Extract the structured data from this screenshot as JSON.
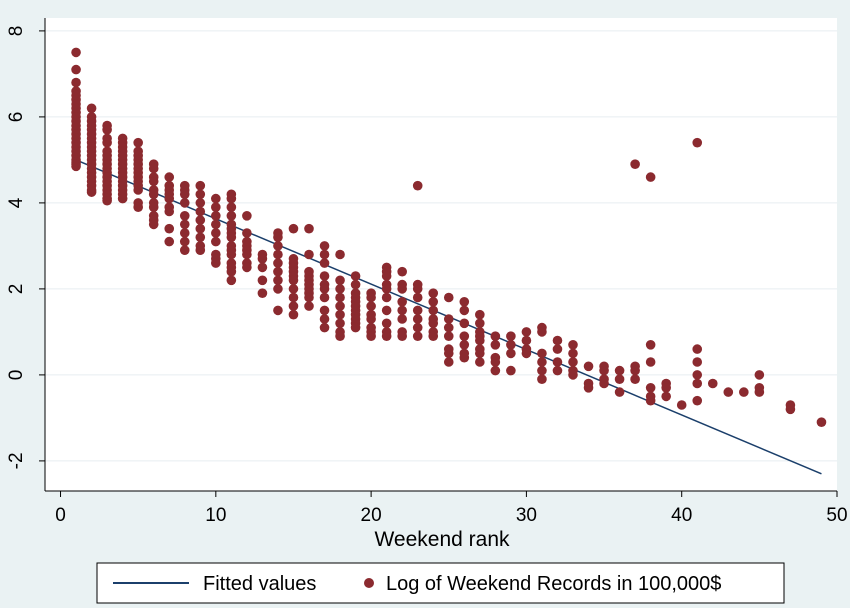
{
  "chart_data": {
    "type": "scatter",
    "title": "",
    "xlabel": "Weekend rank",
    "ylabel": "",
    "xlim": [
      -1,
      50
    ],
    "ylim": [
      -2.7,
      8.3
    ],
    "x_ticks": [
      0,
      10,
      20,
      30,
      40,
      50
    ],
    "y_ticks": [
      -2,
      0,
      2,
      4,
      6,
      8
    ],
    "grid": "horizontal",
    "legend": {
      "position": "bottom"
    },
    "colors": {
      "background": "#eaf2f3",
      "plot_area": "#ffffff",
      "grid": "#e8eef0",
      "points": "#8b2a2f",
      "fit_line": "#1b3f6b"
    },
    "series": [
      {
        "name": "Fitted values",
        "kind": "line",
        "x": [
          1,
          49
        ],
        "y": [
          5.0,
          -2.3
        ]
      },
      {
        "name": "Log of Weekend Records in 100,000$",
        "kind": "scatter",
        "x": [
          1,
          1,
          1,
          1,
          1,
          1,
          1,
          1,
          1,
          1,
          1,
          1,
          1,
          1,
          1,
          1,
          1,
          1,
          1,
          1,
          1,
          1,
          1,
          2,
          2,
          2,
          2,
          2,
          2,
          2,
          2,
          2,
          2,
          2,
          2,
          2,
          2,
          2,
          2,
          2,
          2,
          2,
          2,
          3,
          3,
          3,
          3,
          3,
          3,
          3,
          3,
          3,
          3,
          3,
          3,
          3,
          3,
          3,
          3,
          3,
          4,
          4,
          4,
          4,
          4,
          4,
          4,
          4,
          4,
          4,
          4,
          4,
          4,
          4,
          4,
          5,
          5,
          5,
          5,
          5,
          5,
          5,
          5,
          5,
          5,
          5,
          5,
          5,
          6,
          6,
          6,
          6,
          6,
          6,
          6,
          6,
          6,
          6,
          6,
          7,
          7,
          7,
          7,
          7,
          7,
          7,
          7,
          7,
          8,
          8,
          8,
          8,
          8,
          8,
          8,
          8,
          8,
          9,
          9,
          9,
          9,
          9,
          9,
          9,
          9,
          9,
          10,
          10,
          10,
          10,
          10,
          10,
          10,
          10,
          10,
          11,
          11,
          11,
          11,
          11,
          11,
          11,
          11,
          11,
          11,
          11,
          11,
          11,
          11,
          11,
          12,
          12,
          12,
          12,
          12,
          12,
          12,
          12,
          13,
          13,
          13,
          13,
          13,
          14,
          14,
          14,
          14,
          14,
          14,
          14,
          14,
          14,
          15,
          15,
          15,
          15,
          15,
          15,
          15,
          15,
          15,
          15,
          15,
          16,
          16,
          16,
          16,
          16,
          16,
          16,
          16,
          16,
          16,
          17,
          17,
          17,
          17,
          17,
          17,
          17,
          17,
          17,
          17,
          18,
          18,
          18,
          18,
          18,
          18,
          18,
          18,
          18,
          19,
          19,
          19,
          19,
          19,
          19,
          19,
          19,
          19,
          19,
          19,
          20,
          20,
          20,
          20,
          20,
          20,
          20,
          20,
          21,
          21,
          21,
          21,
          21,
          21,
          21,
          21,
          21,
          21,
          22,
          22,
          22,
          22,
          22,
          22,
          22,
          22,
          23,
          23,
          23,
          23,
          23,
          23,
          23,
          23,
          24,
          24,
          24,
          24,
          24,
          24,
          24,
          25,
          25,
          25,
          25,
          25,
          25,
          25,
          26,
          26,
          26,
          26,
          26,
          26,
          26,
          27,
          27,
          27,
          27,
          27,
          27,
          27,
          27,
          28,
          28,
          28,
          28,
          28,
          29,
          29,
          29,
          29,
          30,
          30,
          30,
          30,
          31,
          31,
          31,
          31,
          31,
          31,
          32,
          32,
          32,
          32,
          33,
          33,
          33,
          33,
          33,
          34,
          34,
          34,
          35,
          35,
          35,
          35,
          36,
          36,
          36,
          37,
          37,
          37,
          37,
          38,
          38,
          38,
          38,
          38,
          38,
          39,
          39,
          39,
          40,
          41,
          41,
          41,
          41,
          41,
          41,
          42,
          43,
          44,
          45,
          45,
          45,
          47,
          47,
          49
        ],
        "y": [
          7.5,
          7.1,
          6.8,
          6.6,
          6.5,
          6.4,
          6.3,
          6.2,
          6.1,
          6.0,
          5.9,
          5.8,
          5.7,
          5.6,
          5.5,
          5.4,
          5.3,
          5.2,
          5.1,
          5.0,
          4.95,
          4.9,
          4.85,
          6.2,
          6.0,
          5.9,
          5.8,
          5.7,
          5.6,
          5.5,
          5.4,
          5.3,
          5.2,
          5.1,
          5.0,
          4.9,
          4.8,
          4.7,
          4.6,
          4.5,
          4.4,
          4.3,
          4.25,
          5.8,
          5.7,
          5.5,
          5.4,
          5.2,
          5.1,
          5.0,
          4.9,
          4.8,
          4.7,
          4.6,
          4.5,
          4.4,
          4.3,
          4.2,
          4.1,
          4.05,
          5.5,
          5.4,
          5.3,
          5.2,
          5.1,
          5.0,
          4.9,
          4.8,
          4.7,
          4.6,
          4.5,
          4.4,
          4.3,
          4.2,
          4.1,
          5.4,
          5.2,
          5.1,
          5.0,
          4.9,
          4.8,
          4.7,
          4.6,
          4.5,
          4.4,
          4.3,
          4.0,
          3.9,
          4.9,
          4.8,
          4.6,
          4.5,
          4.3,
          4.2,
          4.0,
          3.9,
          3.7,
          3.6,
          3.5,
          4.6,
          4.4,
          4.3,
          4.2,
          4.1,
          3.9,
          3.8,
          3.4,
          3.1,
          4.4,
          4.3,
          4.2,
          4.0,
          3.7,
          3.5,
          3.3,
          3.1,
          2.9,
          4.4,
          4.2,
          4.0,
          3.8,
          3.6,
          3.4,
          3.2,
          3.0,
          2.9,
          4.1,
          3.9,
          3.7,
          3.5,
          3.3,
          3.1,
          2.8,
          2.7,
          2.6,
          4.2,
          4.1,
          3.9,
          3.7,
          3.5,
          3.4,
          3.3,
          3.2,
          3.0,
          2.9,
          2.8,
          2.6,
          2.5,
          2.4,
          2.2,
          3.7,
          3.3,
          3.1,
          3.0,
          2.9,
          2.8,
          2.6,
          2.5,
          2.8,
          2.7,
          2.5,
          2.2,
          1.9,
          3.3,
          3.2,
          3.0,
          2.8,
          2.6,
          2.4,
          2.2,
          2.0,
          1.5,
          3.4,
          2.7,
          2.6,
          2.5,
          2.4,
          2.3,
          2.2,
          2.0,
          1.8,
          1.6,
          1.4,
          3.4,
          2.8,
          2.4,
          2.3,
          2.2,
          2.1,
          2.0,
          1.9,
          1.8,
          1.6,
          3.0,
          2.8,
          2.6,
          2.3,
          2.1,
          2.0,
          1.8,
          1.5,
          1.3,
          1.1,
          2.8,
          2.2,
          2.0,
          1.8,
          1.6,
          1.4,
          1.2,
          1.0,
          0.9,
          2.3,
          2.1,
          1.9,
          1.8,
          1.7,
          1.6,
          1.5,
          1.4,
          1.3,
          1.2,
          1.1,
          1.9,
          1.8,
          1.6,
          1.4,
          1.3,
          1.1,
          1.0,
          0.9,
          2.5,
          2.4,
          2.3,
          2.1,
          2.0,
          1.8,
          1.5,
          1.2,
          1.0,
          0.9,
          2.4,
          2.1,
          2.0,
          1.7,
          1.5,
          1.3,
          1.0,
          0.9,
          4.4,
          2.1,
          2.0,
          1.8,
          1.5,
          1.3,
          1.1,
          0.9,
          1.9,
          1.7,
          1.5,
          1.3,
          1.2,
          1.0,
          0.9,
          1.8,
          1.3,
          1.1,
          0.9,
          0.6,
          0.5,
          0.3,
          1.7,
          1.5,
          1.2,
          0.9,
          0.7,
          0.5,
          0.4,
          1.4,
          1.2,
          1.0,
          0.9,
          0.8,
          0.6,
          0.5,
          0.3,
          0.9,
          0.7,
          0.4,
          0.3,
          0.1,
          0.9,
          0.7,
          0.5,
          0.1,
          1.0,
          0.8,
          0.6,
          0.5,
          1.1,
          1.0,
          0.5,
          0.3,
          0.1,
          -0.1,
          0.8,
          0.6,
          0.3,
          0.1,
          0.7,
          0.5,
          0.3,
          0.1,
          0.0,
          0.2,
          -0.2,
          -0.3,
          0.2,
          0.1,
          -0.1,
          -0.2,
          0.1,
          -0.1,
          -0.4,
          4.9,
          0.2,
          0.1,
          -0.1,
          4.6,
          0.7,
          0.3,
          -0.3,
          -0.5,
          -0.6,
          -0.2,
          -0.3,
          -0.5,
          -0.7,
          5.4,
          0.6,
          0.3,
          0.0,
          -0.2,
          -0.6,
          -0.2,
          -0.4,
          -0.4,
          0.0,
          -0.3,
          -0.4,
          -0.7,
          -0.8,
          -1.1
        ]
      }
    ]
  }
}
